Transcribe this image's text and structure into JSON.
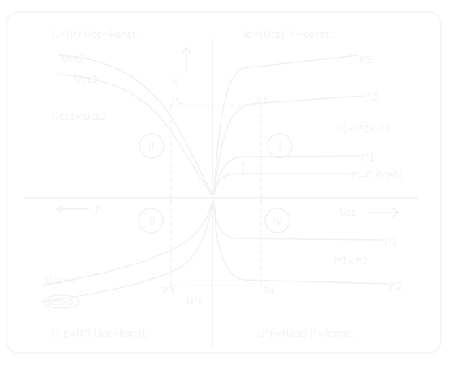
{
  "quadrant_titles": {
    "top_left": "Iₛ=(Iᴮ)  Uᴄᴇ=konst.",
    "top_right": "Iᴄ=(Uᴄᴇ)  Iᴮ=konst.",
    "bottom_left": "Uᴮᴇ=(Iᴮ)  Uᴄᴇ=konst.",
    "bottom_right": "Uᴮᴇ=(Uᴄᴇ)  Iᴮ=konst."
  },
  "axis_labels": {
    "ic": "Iᴄ",
    "ib": "Iᴮ",
    "uce": "Uᴄᴇ",
    "ube": "Uᴮᴇ"
  },
  "quadrant_numbers": {
    "i": "I",
    "ii": "II",
    "iii": "III",
    "iv": "IV"
  },
  "series_labels": {
    "uce2": "Uᴄᴇ2",
    "uce1": "Uᴄᴇ1",
    "relation_left": "Uᴄᴇ1<Uᴄᴇ2",
    "relation_right": "Iᴮ1<Iᴮ2<Iᴮ3",
    "ib3": "Iᴮ3",
    "ib2": "Iᴮ2",
    "ib1": "Iᴮ1",
    "ib0": "Iᴮ=0 (Iᴄᴇ0)",
    "uce_zero": "Uᴄᴇ=0",
    "uce_gt": "Uᴄᴇ>0",
    "ib1_low": "Iᴮ1",
    "ib_relation_low": "Iᴮ1<Iᴮ2",
    "ib2_low": "Iᴮ2"
  },
  "points": {
    "p2": "P2",
    "p1": "P1",
    "p3": "P3",
    "p4": "P4"
  }
}
